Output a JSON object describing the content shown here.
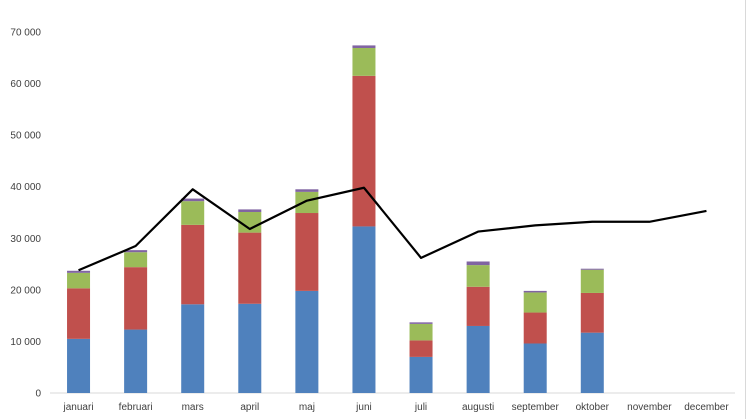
{
  "chart_data": {
    "type": "bar",
    "stacked": true,
    "title": "",
    "xlabel": "",
    "ylabel": "",
    "ylim": [
      0,
      70000
    ],
    "yticks": [
      0,
      10000,
      20000,
      30000,
      40000,
      50000,
      60000,
      70000
    ],
    "ytick_labels": [
      "0",
      "10 000",
      "20 000",
      "30 000",
      "40 000",
      "50 000",
      "60 000",
      "70 000"
    ],
    "grid": false,
    "legend": "none",
    "categories": [
      "januari",
      "februari",
      "mars",
      "april",
      "maj",
      "juni",
      "juli",
      "augusti",
      "september",
      "oktober",
      "november",
      "december"
    ],
    "series": [
      {
        "type": "bar",
        "color": "#4f81bd",
        "values": [
          10500,
          12300,
          17200,
          17300,
          19800,
          32300,
          7000,
          13000,
          9600,
          11700,
          null,
          null
        ]
      },
      {
        "type": "bar",
        "color": "#c0504d",
        "values": [
          9800,
          12100,
          15400,
          13800,
          15100,
          29200,
          3200,
          7600,
          6000,
          7700,
          null,
          null
        ]
      },
      {
        "type": "bar",
        "color": "#9bbb59",
        "values": [
          3000,
          2900,
          4600,
          4000,
          4100,
          5400,
          3200,
          4200,
          3900,
          4500,
          null,
          null
        ]
      },
      {
        "type": "bar",
        "color": "#8064a2",
        "values": [
          400,
          400,
          500,
          500,
          500,
          500,
          300,
          700,
          300,
          200,
          null,
          null
        ]
      },
      {
        "type": "line",
        "color": "#000000",
        "values": [
          23800,
          28500,
          39500,
          31800,
          37300,
          39800,
          26200,
          31300,
          32500,
          33200,
          33200,
          35300
        ]
      }
    ]
  }
}
